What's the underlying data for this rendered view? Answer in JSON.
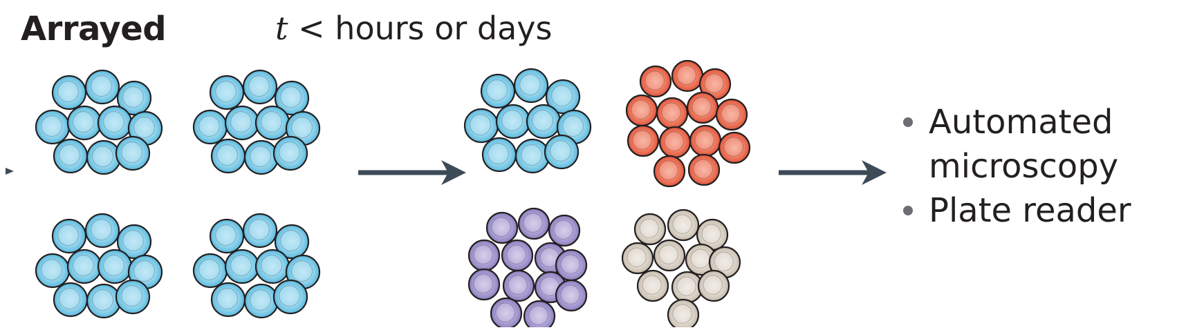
{
  "header": {
    "title": "Arrayed",
    "time_variable": "t",
    "time_text": "< hours or days"
  },
  "outputs": {
    "items": [
      "Automated microscopy",
      "Plate reader"
    ],
    "item_lines": [
      [
        "Automated",
        "microscopy"
      ],
      [
        "Plate reader"
      ]
    ]
  },
  "colors": {
    "blue_fill": "#7fcde9",
    "blue_inner": "#a7def2",
    "red_fill": "#ee6f55",
    "red_inner": "#f39b86",
    "purple_fill": "#a398cf",
    "purple_inner": "#c2b9e0",
    "beige_fill": "#d7cfc4",
    "beige_inner": "#e7e1d9",
    "outline": "#231f20",
    "arrow": "#3c4b57"
  },
  "icons": {
    "arrow": "right-arrow-icon",
    "cell": "cell-icon"
  }
}
